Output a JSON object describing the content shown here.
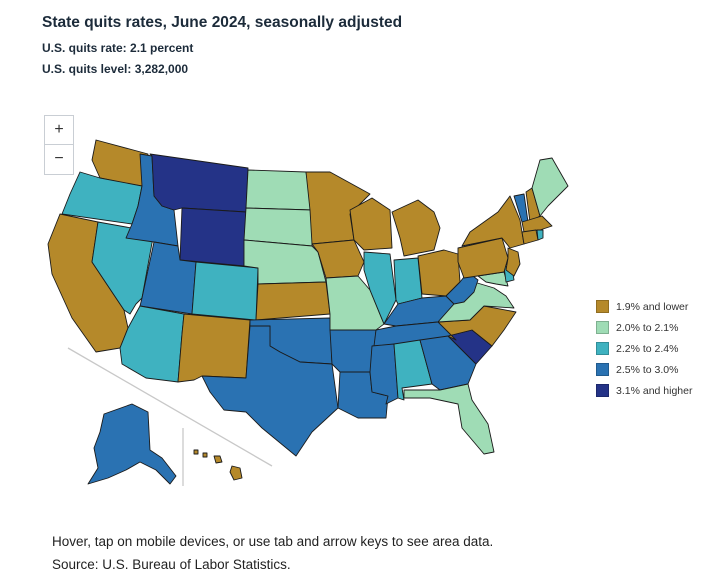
{
  "title": "State quits rates, June 2024, seasonally adjusted",
  "quits_rate_text": "U.S. quits rate: 2.1 percent",
  "quits_level_text": "U.S. quits level: 3,282,000",
  "zoom": {
    "in": "+",
    "out": "−"
  },
  "legend": [
    {
      "label": "1.9% and lower",
      "color": "#b5892a"
    },
    {
      "label": "2.0% to 2.1%",
      "color": "#9fdcb5"
    },
    {
      "label": "2.2% to 2.4%",
      "color": "#3fb2c0"
    },
    {
      "label": "2.5% to 3.0%",
      "color": "#2a72b2"
    },
    {
      "label": "3.1% and higher",
      "color": "#243387"
    }
  ],
  "states": {
    "WA": 0,
    "OR": 2,
    "CA": 0,
    "NV": 2,
    "ID": 3,
    "MT": 4,
    "WY": 4,
    "UT": 3,
    "AZ": 2,
    "CO": 2,
    "NM": 0,
    "ND": 1,
    "SD": 1,
    "NE": 1,
    "KS": 0,
    "OK": 3,
    "TX": 3,
    "MN": 0,
    "IA": 0,
    "MO": 1,
    "AR": 3,
    "LA": 3,
    "WI": 0,
    "IL": 2,
    "MI": 0,
    "IN": 2,
    "OH": 0,
    "KY": 3,
    "TN": 3,
    "MS": 3,
    "AL": 2,
    "GA": 3,
    "FL": 1,
    "SC": 4,
    "NC": 0,
    "VA": 1,
    "WV": 3,
    "PA": 0,
    "NY": 0,
    "ME": 1,
    "NH": 0,
    "VT": 3,
    "MA": 0,
    "CT": 0,
    "RI": 2,
    "NJ": 0,
    "DE": 2,
    "MD": 1,
    "AK": 3,
    "HI": 0
  },
  "hover_note": "Hover, tap on mobile devices, or use tab and arrow keys to see area data.",
  "source": "Source: U.S. Bureau of Labor Statistics."
}
